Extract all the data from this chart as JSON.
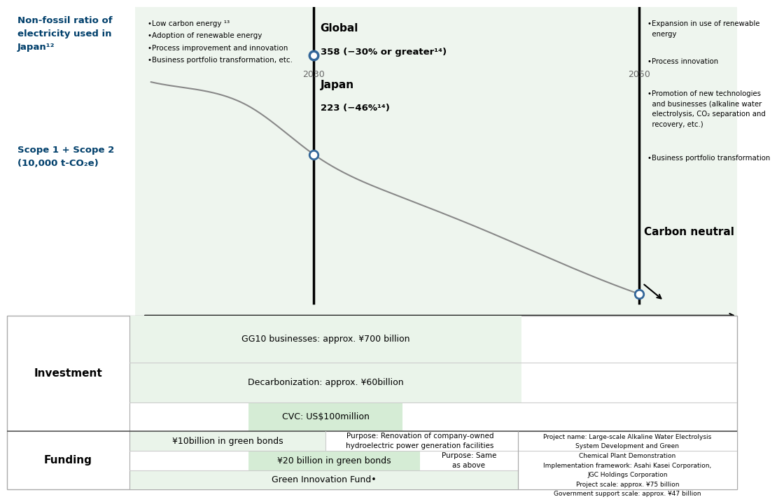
{
  "bg_color": "#ffffff",
  "chart_bg": "#eef5ee",
  "label_color": "#003f6b",
  "title_nonfossil": "Non-fossil ratio of\nelectricity used in\nJapan¹²",
  "title_scope": "Scope 1 + Scope 2\n(10,000 t-CO₂e)",
  "left_bullets": [
    "•Low carbon energy ¹³",
    "•Adoption of renewable energy",
    "•Process improvement and innovation",
    "•Business portfolio transformation, etc."
  ],
  "right_bullets": [
    "•Expansion in use of renewable\n  energy",
    "•Process innovation",
    "•Promotion of new technologies\n  and businesses (alkaline water\n  electrolysis, CO₂ separation and\n  recovery, etc.)",
    "•Business portfolio transformation"
  ],
  "carbon_neutral_label": "Carbon neutral",
  "investment_label": "Investment",
  "funding_label": "Funding",
  "project_box": "Project name: Large-scale Alkaline Water Electrolysis\nSystem Development and Green\nChemical Plant Demonstration\nImplementation framework: Asahi Kasei Corporation,\nJGC Holdings Corporation\nProject scale: approx. ¥75 billion\nGovernment support scale: approx. ¥47 billion"
}
